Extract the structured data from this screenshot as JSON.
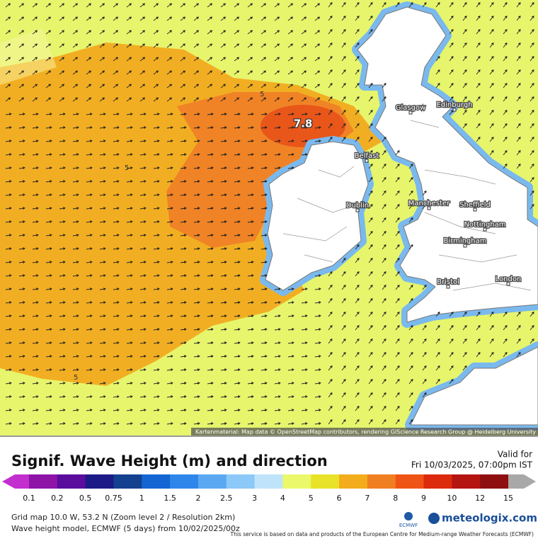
{
  "header": {
    "title": "Signif. Wave Height (m) and direction",
    "valid_label": "Valid for",
    "valid_time": "Fri 10/03/2025, 07:00pm IST"
  },
  "map": {
    "peak_label": "7.8",
    "contour_labels": [
      "5",
      "5",
      "5"
    ],
    "cities": [
      "Glasgow",
      "Edinburgh",
      "Belfast",
      "Dublin",
      "Manchester",
      "Sheffield",
      "Nottingham",
      "Birmingham",
      "Bristol",
      "London"
    ],
    "attribution": "Kartenmaterial: Map data © OpenStreetMap contributors, rendering GIScience Research Group @ Heidelberg University"
  },
  "legend": {
    "labels": [
      0.1,
      0.2,
      0.5,
      0.75,
      1,
      1.5,
      2,
      2.5,
      3,
      4,
      5,
      6,
      7,
      8,
      9,
      10,
      12,
      15
    ],
    "colors": [
      "#c32fcf",
      "#8e14a8",
      "#5a0c9c",
      "#1c1a86",
      "#13418f",
      "#1465d4",
      "#2f86ea",
      "#5aa8f2",
      "#8cc8f8",
      "#bfe4fa",
      "#eaf86a",
      "#e8e228",
      "#f3ad1c",
      "#f07f22",
      "#ef5416",
      "#dc2a0c",
      "#b51511",
      "#8e0f0f",
      "#a8a8a8"
    ]
  },
  "footer": {
    "line1": "Grid map 10.0 W, 53.2 N (Zoom level 2 / Resolution 2km)",
    "line2": "Wave height model, ECMWF (5 days) from 10/02/2025/00z",
    "disclaimer": "This service is based on data and products of the European Centre for Medium-range Weather Forecasts (ECMWF)",
    "ecmwf": "ECMWF",
    "brand": "meteologix.com"
  }
}
